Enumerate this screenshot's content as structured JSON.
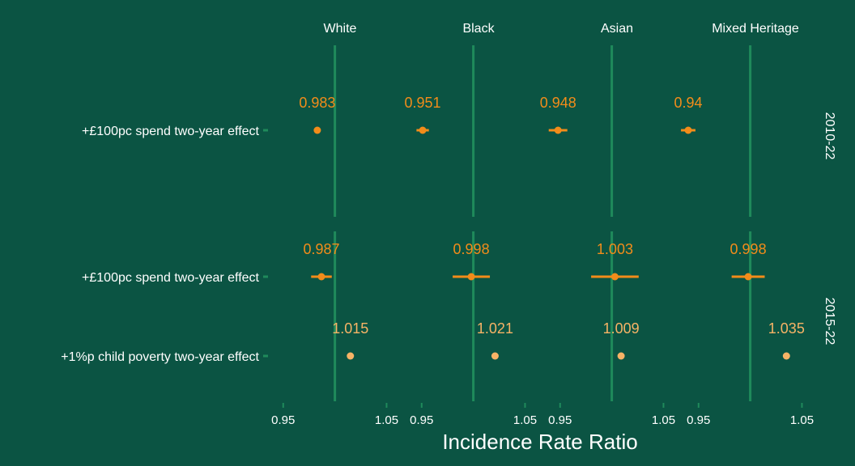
{
  "chart_data": {
    "type": "scatter",
    "xlabel": "Incidence Rate Ratio",
    "x_ticks": [
      0.95,
      1.05
    ],
    "x_tick_labels": [
      "0.95",
      "1.05"
    ],
    "xlim": [
      0.94,
      1.07
    ],
    "reference_line": 1.0,
    "facets": [
      "White",
      "Black",
      "Asian",
      "Mixed Heritage"
    ],
    "panels": [
      {
        "name": "2010-22",
        "rows": [
          "+£100pc spend two-year effect"
        ]
      },
      {
        "name": "2015-22",
        "rows": [
          "+£100pc spend two-year effect",
          "+1%p child poverty two-year effect"
        ]
      }
    ],
    "points": [
      {
        "panel": 0,
        "row": 0,
        "facet": 0,
        "value": 0.983,
        "label": "0.983",
        "lo": 0.983,
        "hi": 0.983,
        "kind": "spend"
      },
      {
        "panel": 0,
        "row": 0,
        "facet": 1,
        "value": 0.951,
        "label": "0.951",
        "lo": 0.945,
        "hi": 0.957,
        "kind": "spend"
      },
      {
        "panel": 0,
        "row": 0,
        "facet": 2,
        "value": 0.948,
        "label": "0.948",
        "lo": 0.939,
        "hi": 0.957,
        "kind": "spend"
      },
      {
        "panel": 0,
        "row": 0,
        "facet": 3,
        "value": 0.94,
        "label": "0.94",
        "lo": 0.933,
        "hi": 0.947,
        "kind": "spend"
      },
      {
        "panel": 1,
        "row": 0,
        "facet": 0,
        "value": 0.987,
        "label": "0.987",
        "lo": 0.977,
        "hi": 0.997,
        "kind": "spend"
      },
      {
        "panel": 1,
        "row": 0,
        "facet": 1,
        "value": 0.998,
        "label": "0.998",
        "lo": 0.98,
        "hi": 1.016,
        "kind": "spend"
      },
      {
        "panel": 1,
        "row": 0,
        "facet": 2,
        "value": 1.003,
        "label": "1.003",
        "lo": 0.98,
        "hi": 1.026,
        "kind": "spend"
      },
      {
        "panel": 1,
        "row": 0,
        "facet": 3,
        "value": 0.998,
        "label": "0.998",
        "lo": 0.982,
        "hi": 1.014,
        "kind": "spend"
      },
      {
        "panel": 1,
        "row": 1,
        "facet": 0,
        "value": 1.015,
        "label": "1.015",
        "lo": 1.015,
        "hi": 1.015,
        "kind": "poverty"
      },
      {
        "panel": 1,
        "row": 1,
        "facet": 1,
        "value": 1.021,
        "label": "1.021",
        "lo": 1.021,
        "hi": 1.021,
        "kind": "poverty"
      },
      {
        "panel": 1,
        "row": 1,
        "facet": 2,
        "value": 1.009,
        "label": "1.009",
        "lo": 1.009,
        "hi": 1.009,
        "kind": "poverty"
      },
      {
        "panel": 1,
        "row": 1,
        "facet": 3,
        "value": 1.035,
        "label": "1.035",
        "lo": 1.035,
        "hi": 1.035,
        "kind": "poverty"
      }
    ],
    "colors": {
      "background": "#0b5443",
      "reference_line": "#1f8a5b",
      "spend": "#f28c1a",
      "poverty": "#f7b366",
      "text": "#ffffff"
    }
  }
}
